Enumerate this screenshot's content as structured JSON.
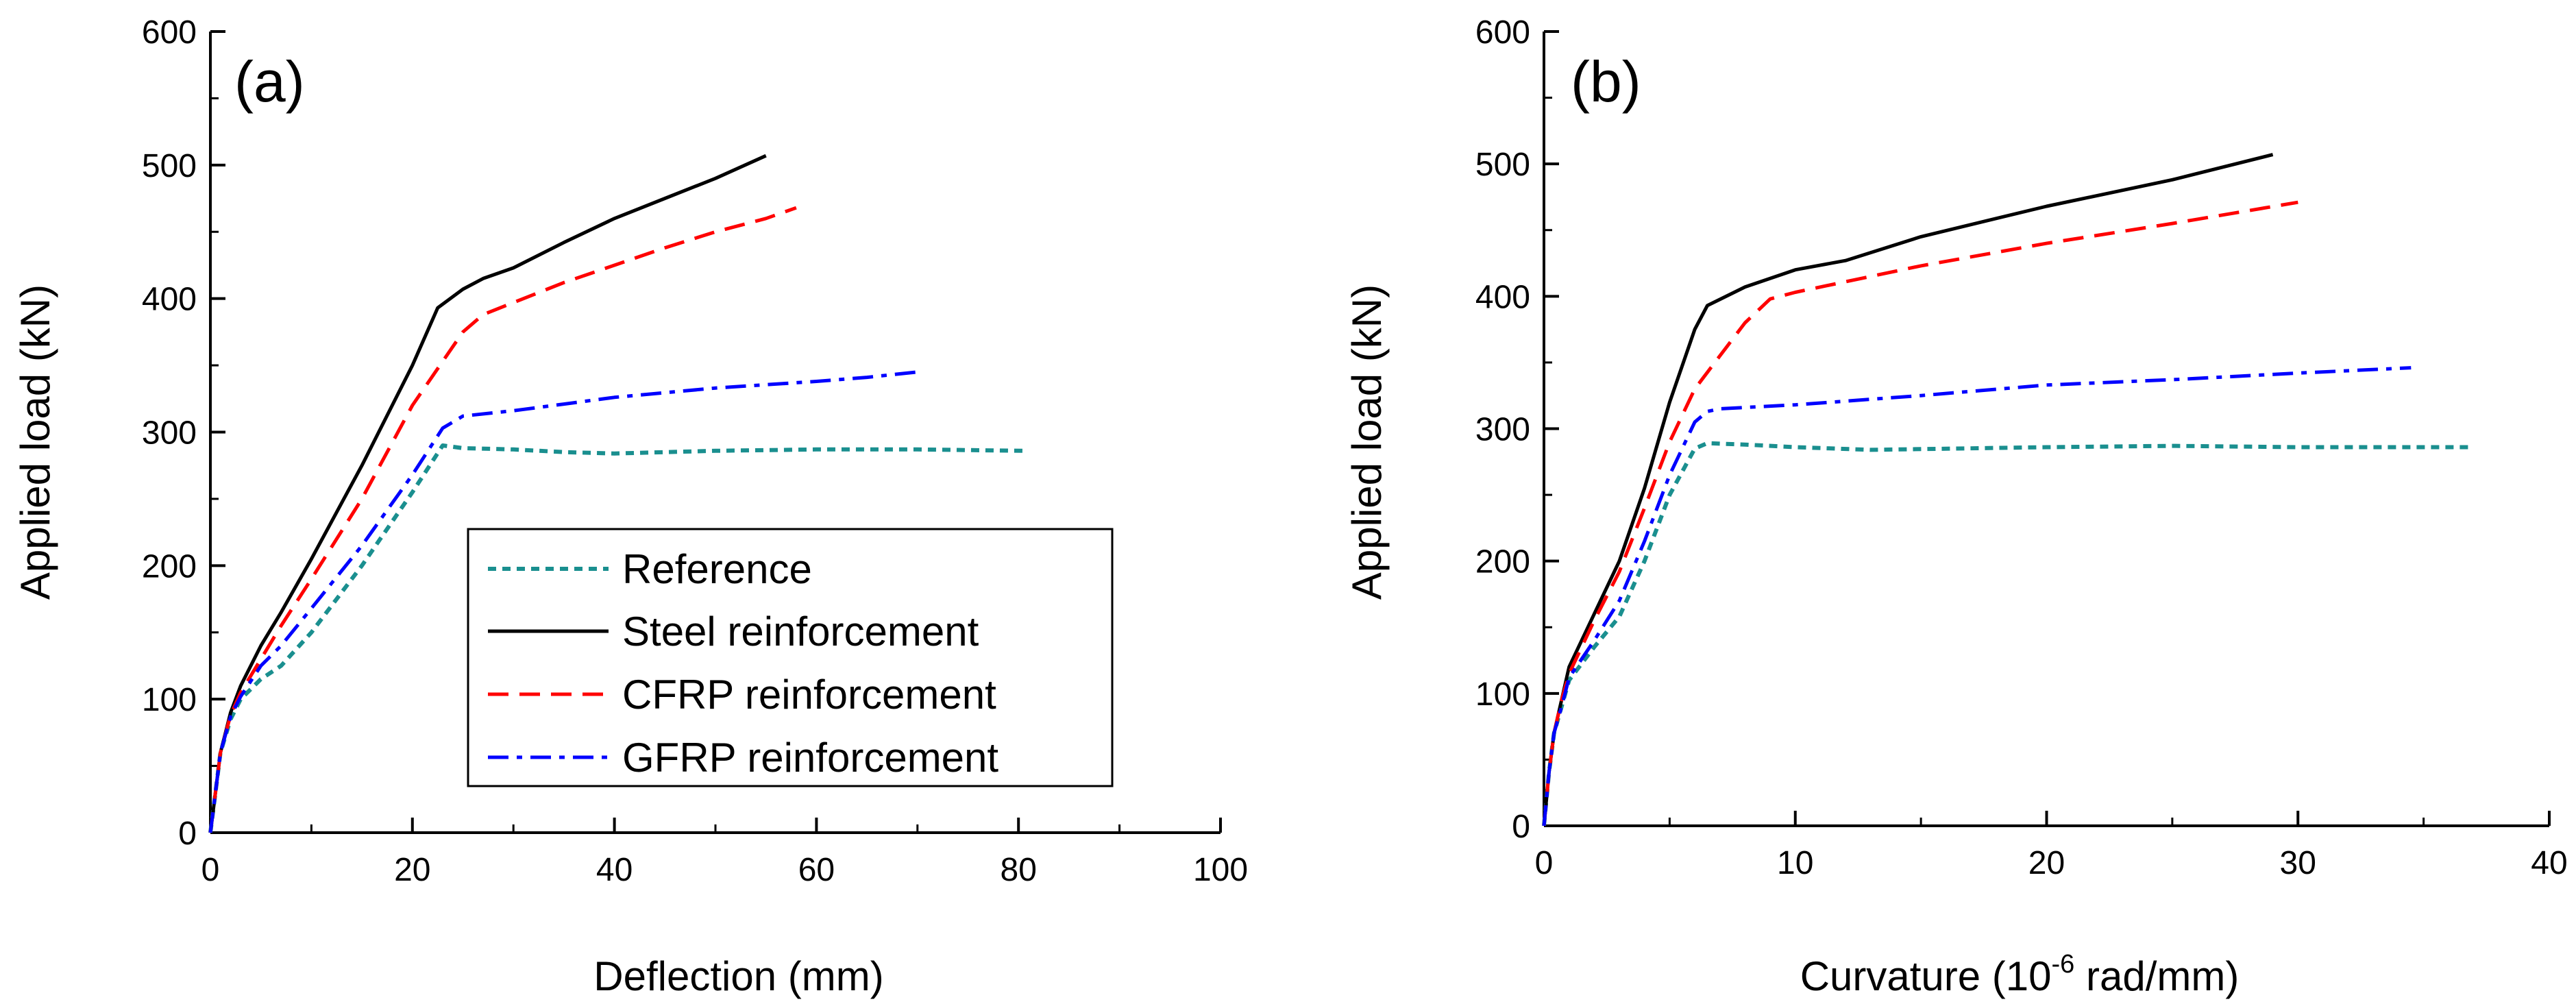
{
  "colors": {
    "reference": "#1a8f8f",
    "steel": "#000000",
    "cfrp": "#ff0000",
    "gfrp": "#0000ff"
  },
  "legend": {
    "reference": "Reference",
    "steel": "Steel reinforcement",
    "cfrp": "CFRP reinforcement",
    "gfrp": "GFRP reinforcement"
  },
  "chart_data": [
    {
      "type": "line",
      "panel_label": "(a)",
      "xlabel": "Deflection (mm)",
      "ylabel": "Applied load (kN)",
      "xlim": [
        0,
        100
      ],
      "ylim": [
        0,
        600
      ],
      "xticks": [
        "0",
        "20",
        "40",
        "60",
        "80",
        "100"
      ],
      "yticks": [
        "0",
        "100",
        "200",
        "300",
        "400",
        "500",
        "600"
      ],
      "legend_position": "center-right",
      "series": [
        {
          "name": "Reference",
          "key": "reference",
          "style": "dotted",
          "x": [
            0,
            0.5,
            1,
            2,
            3,
            5,
            7,
            10,
            15,
            20,
            23,
            25,
            30,
            35,
            40,
            50,
            60,
            70,
            80.5
          ],
          "y": [
            0,
            30,
            60,
            85,
            100,
            115,
            125,
            150,
            200,
            255,
            290,
            288,
            287,
            285,
            284,
            286,
            287,
            287,
            286
          ]
        },
        {
          "name": "Steel reinforcement",
          "key": "steel",
          "style": "solid",
          "x": [
            0,
            0.5,
            1,
            2,
            3,
            5,
            7,
            10,
            15,
            20,
            22.5,
            25,
            27,
            30,
            35,
            40,
            45,
            50,
            55
          ],
          "y": [
            0,
            30,
            60,
            90,
            110,
            140,
            165,
            205,
            275,
            350,
            393,
            407,
            415,
            423,
            442,
            460,
            475,
            490,
            507
          ]
        },
        {
          "name": "CFRP reinforcement",
          "key": "cfrp",
          "style": "dashed",
          "x": [
            0,
            0.5,
            1,
            2,
            3,
            5,
            7,
            10,
            15,
            20,
            25,
            27,
            30,
            35,
            40,
            45,
            50,
            55,
            58
          ],
          "y": [
            0,
            30,
            60,
            88,
            105,
            130,
            155,
            190,
            250,
            320,
            375,
            388,
            397,
            412,
            425,
            438,
            450,
            460,
            468
          ]
        },
        {
          "name": "GFRP reinforcement",
          "key": "gfrp",
          "style": "dashdot",
          "x": [
            0,
            0.5,
            1,
            2,
            3,
            5,
            7,
            10,
            15,
            20,
            23,
            25,
            30,
            35,
            40,
            50,
            60,
            65,
            70
          ],
          "y": [
            0,
            30,
            60,
            87,
            102,
            125,
            140,
            168,
            215,
            268,
            303,
            312,
            316,
            321,
            326,
            333,
            338,
            341,
            345
          ]
        }
      ]
    },
    {
      "type": "line",
      "panel_label": "(b)",
      "xlabel": "Curvature (10",
      "xlabel_sup": "-6",
      "xlabel_suffix": " rad/mm)",
      "ylabel": "Applied load (kN)",
      "xlim": [
        0,
        40
      ],
      "ylim": [
        0,
        600
      ],
      "xticks": [
        "0",
        "10",
        "20",
        "30",
        "40"
      ],
      "yticks": [
        "0",
        "100",
        "200",
        "300",
        "400",
        "500",
        "600"
      ],
      "series": [
        {
          "name": "Reference",
          "key": "reference",
          "style": "dotted",
          "x": [
            0,
            0.2,
            0.4,
            0.7,
            1,
            2,
            3,
            4,
            5,
            6,
            6.5,
            8,
            10,
            13,
            20,
            25,
            30,
            36.8
          ],
          "y": [
            0,
            40,
            70,
            90,
            110,
            135,
            158,
            200,
            250,
            285,
            289,
            288,
            286,
            284,
            286,
            287,
            286,
            286
          ]
        },
        {
          "name": "Steel reinforcement",
          "key": "steel",
          "style": "solid",
          "x": [
            0,
            0.2,
            0.4,
            0.7,
            1,
            2,
            3,
            4,
            5,
            6,
            6.5,
            8,
            10,
            12,
            15,
            20,
            25,
            29
          ],
          "y": [
            0,
            40,
            70,
            95,
            120,
            160,
            200,
            255,
            320,
            375,
            393,
            407,
            420,
            427,
            445,
            468,
            488,
            507
          ]
        },
        {
          "name": "CFRP reinforcement",
          "key": "cfrp",
          "style": "dashed",
          "x": [
            0,
            0.2,
            0.4,
            0.7,
            1,
            2,
            3,
            4,
            5,
            6,
            7,
            8,
            9,
            10,
            15,
            20,
            25,
            30
          ],
          "y": [
            0,
            40,
            70,
            95,
            115,
            155,
            192,
            240,
            290,
            330,
            355,
            380,
            398,
            403,
            423,
            440,
            455,
            471
          ]
        },
        {
          "name": "GFRP reinforcement",
          "key": "gfrp",
          "style": "dashdot",
          "x": [
            0,
            0.2,
            0.4,
            0.7,
            1,
            2,
            3,
            4,
            5,
            6,
            6.5,
            7,
            10,
            15,
            20,
            25,
            30,
            34.5
          ],
          "y": [
            0,
            40,
            70,
            90,
            112,
            140,
            170,
            215,
            265,
            305,
            313,
            315,
            318,
            325,
            333,
            337,
            342,
            346
          ]
        }
      ]
    }
  ]
}
